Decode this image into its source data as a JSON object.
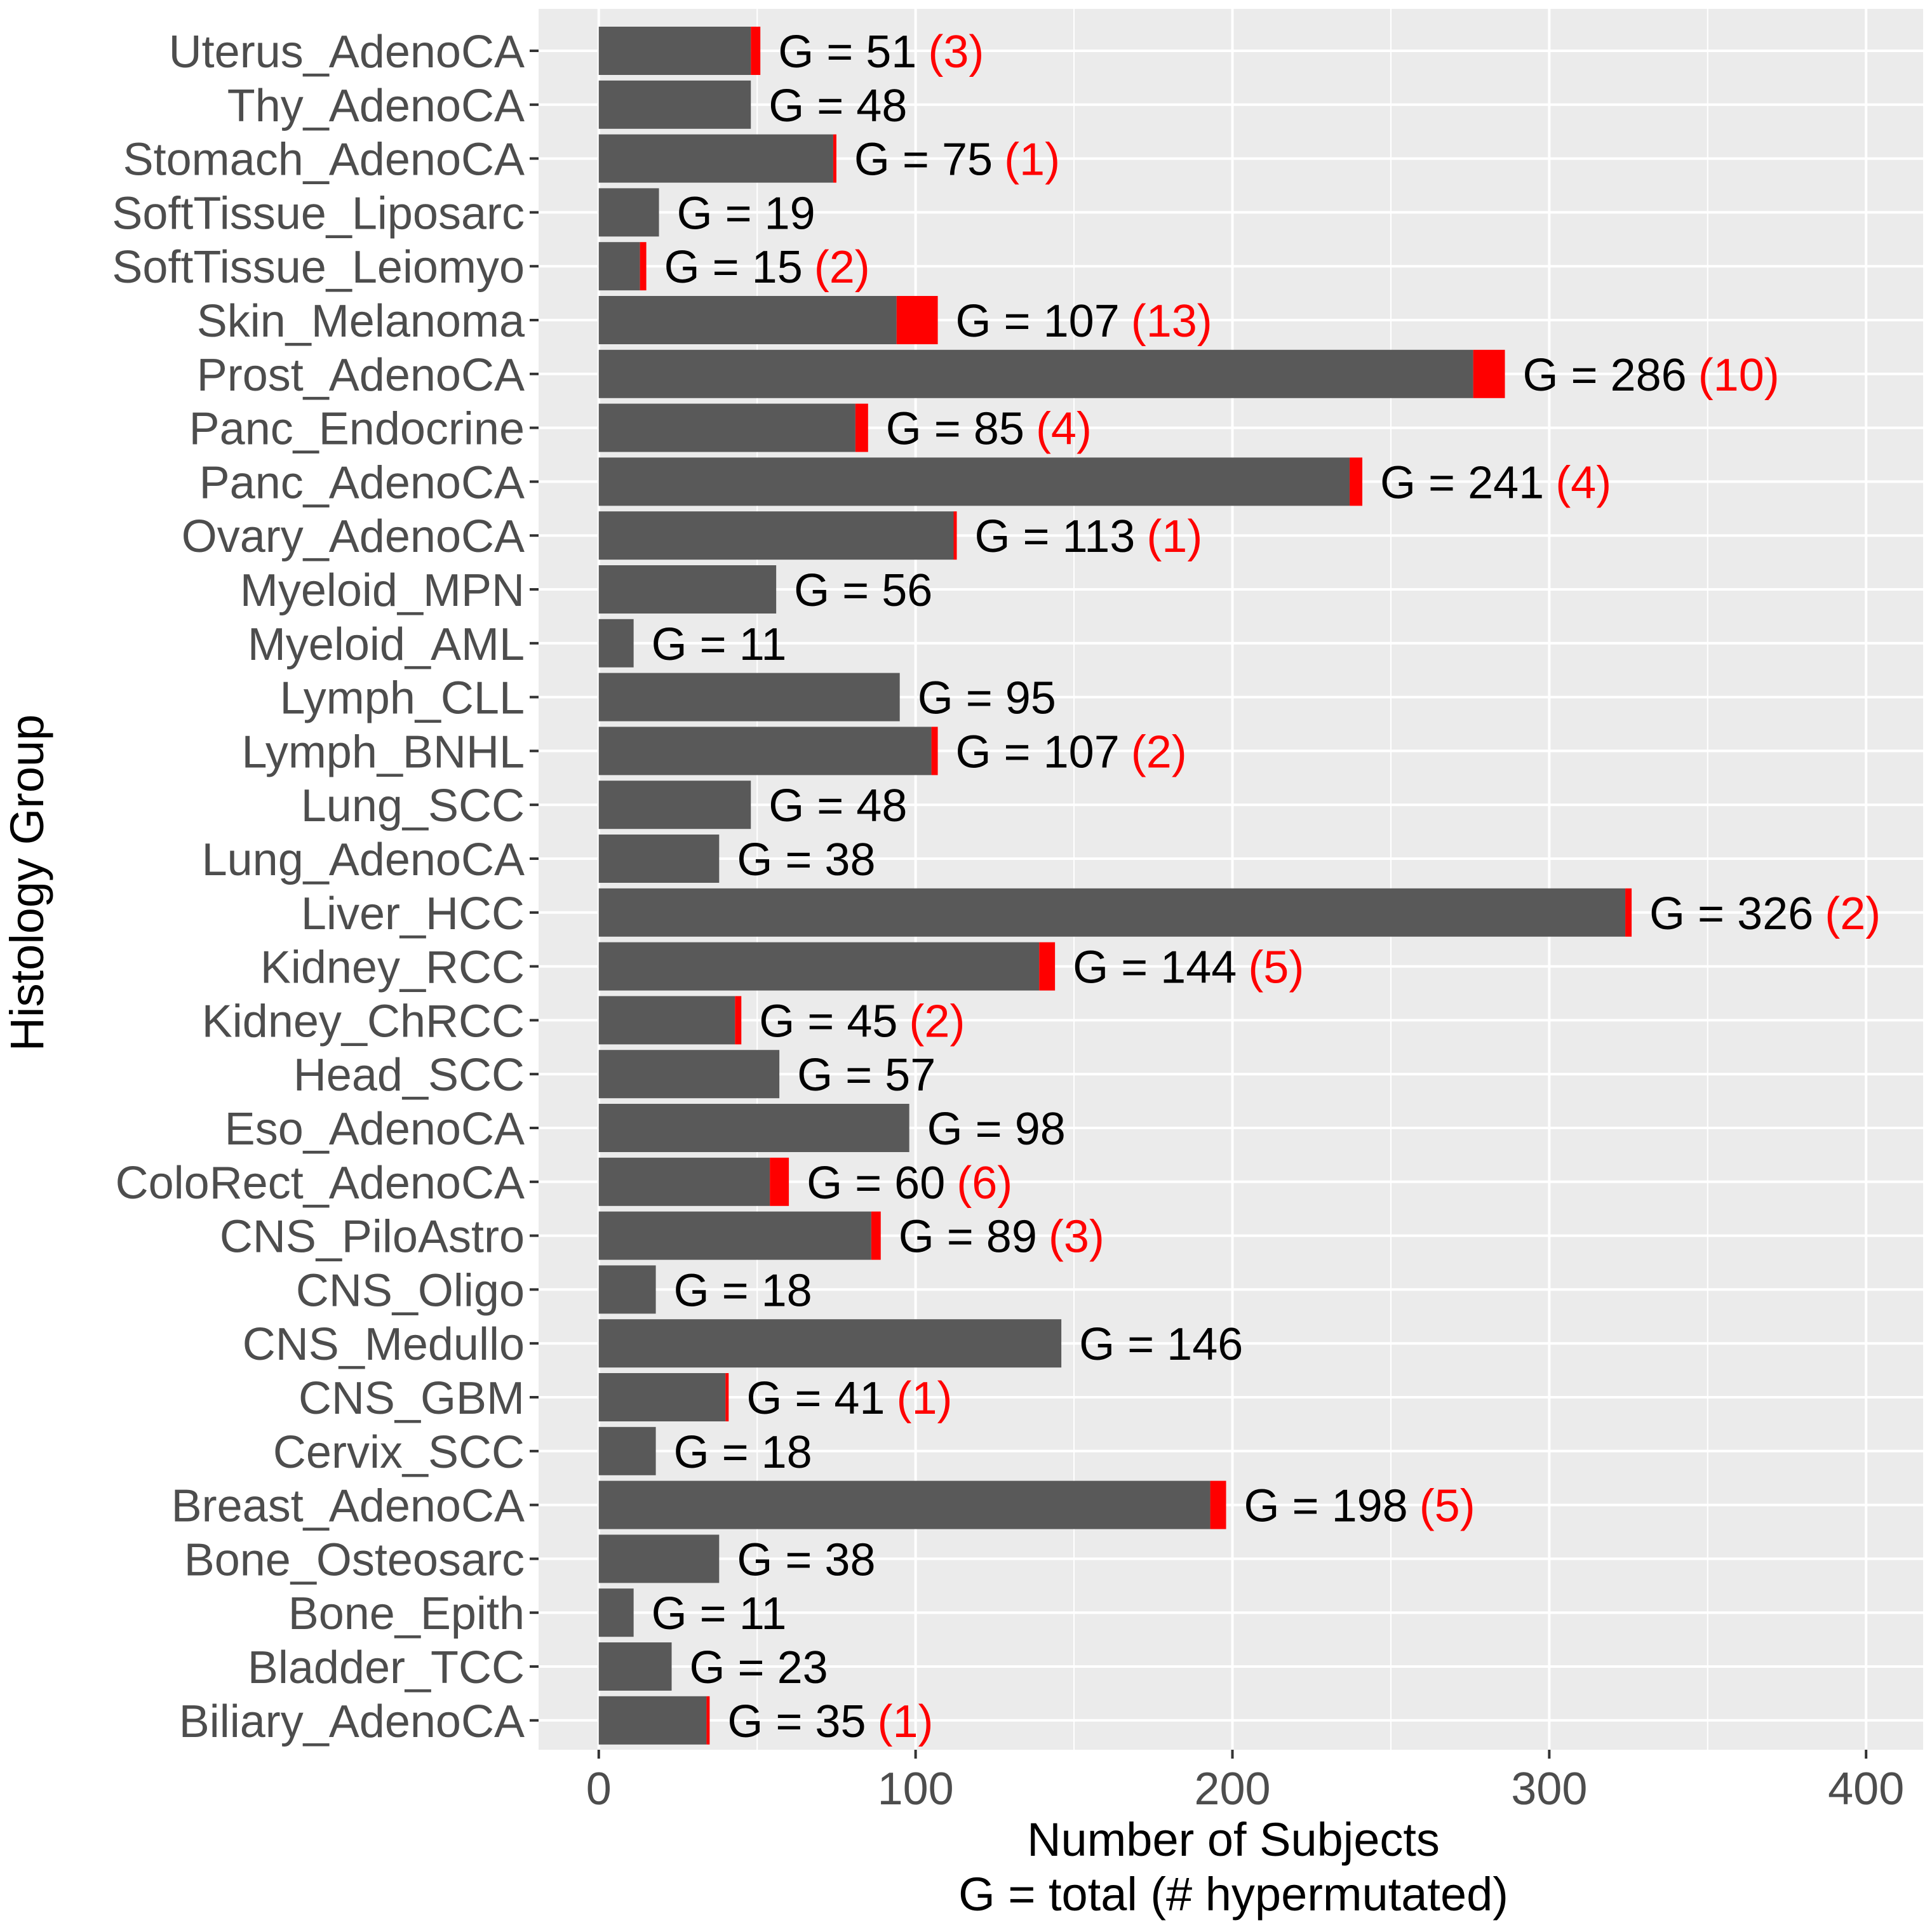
{
  "chart_data": {
    "type": "bar",
    "orientation": "horizontal",
    "stacked": true,
    "ylabel": "Histology Group",
    "xlabel_lines": [
      "Number of Subjects",
      "G = total (# hypermutated)"
    ],
    "xlim": [
      -19,
      418
    ],
    "xticks": [
      "0",
      "100",
      "200",
      "300",
      "400"
    ],
    "grid": true,
    "legend": "none",
    "colors": {
      "total": "#595959",
      "hypermutated": "#ff0000",
      "panel": "#ebebeb",
      "grid": "#ffffff"
    },
    "categories": [
      "Uterus_AdenoCA",
      "Thy_AdenoCA",
      "Stomach_AdenoCA",
      "SoftTissue_Liposarc",
      "SoftTissue_Leiomyo",
      "Skin_Melanoma",
      "Prost_AdenoCA",
      "Panc_Endocrine",
      "Panc_AdenoCA",
      "Ovary_AdenoCA",
      "Myeloid_MPN",
      "Myeloid_AML",
      "Lymph_CLL",
      "Lymph_BNHL",
      "Lung_SCC",
      "Lung_AdenoCA",
      "Liver_HCC",
      "Kidney_RCC",
      "Kidney_ChRCC",
      "Head_SCC",
      "Eso_AdenoCA",
      "ColoRect_AdenoCA",
      "CNS_PiloAstro",
      "CNS_Oligo",
      "CNS_Medullo",
      "CNS_GBM",
      "Cervix_SCC",
      "Breast_AdenoCA",
      "Bone_Osteosarc",
      "Bone_Epith",
      "Bladder_TCC",
      "Biliary_AdenoCA"
    ],
    "series": [
      {
        "values": [
          51,
          48,
          75,
          19,
          15,
          107,
          286,
          85,
          241,
          113,
          56,
          11,
          95,
          107,
          48,
          38,
          326,
          144,
          45,
          57,
          98,
          60,
          89,
          18,
          146,
          41,
          18,
          198,
          38,
          11,
          23,
          35
        ]
      },
      {
        "values": [
          3,
          0,
          1,
          0,
          2,
          13,
          10,
          4,
          4,
          1,
          0,
          0,
          0,
          2,
          0,
          0,
          2,
          5,
          2,
          0,
          0,
          6,
          3,
          0,
          0,
          1,
          0,
          5,
          0,
          0,
          0,
          1
        ]
      }
    ],
    "bar_labels": [
      "G = 51",
      "G = 48",
      "G = 75",
      "G = 19",
      "G = 15",
      "G = 107",
      "G = 286",
      "G = 85",
      "G = 241",
      "G = 113",
      "G = 56",
      "G = 11",
      "G = 95",
      "G = 107",
      "G = 48",
      "G = 38",
      "G = 326",
      "G = 144",
      "G = 45",
      "G = 57",
      "G = 98",
      "G = 60",
      "G = 89",
      "G = 18",
      "G = 146",
      "G = 41",
      "G = 18",
      "G = 198",
      "G = 38",
      "G = 11",
      "G = 23",
      "G = 35"
    ],
    "hyper_labels": [
      "(3)",
      "",
      "(1)",
      "",
      "(2)",
      "(13)",
      "(10)",
      "(4)",
      "(4)",
      "(1)",
      "",
      "",
      "",
      "(2)",
      "",
      "",
      "(2)",
      "(5)",
      "(2)",
      "",
      "",
      "(6)",
      "(3)",
      "",
      "",
      "(1)",
      "",
      "(5)",
      "",
      "",
      "",
      "(1)"
    ]
  }
}
